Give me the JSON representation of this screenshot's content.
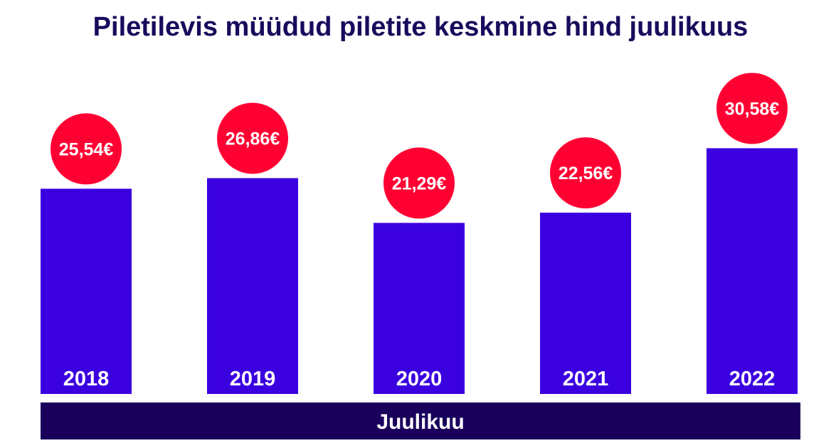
{
  "chart_data": {
    "type": "bar",
    "title": "Piletilevis müüdud piletite keskmine hind juulikuus",
    "xlabel": "Juulikuu",
    "categories": [
      "2018",
      "2019",
      "2020",
      "2021",
      "2022"
    ],
    "values": [
      25.54,
      26.86,
      21.29,
      22.56,
      30.58
    ],
    "value_labels": [
      "25,54€",
      "26,86€",
      "21,29€",
      "22,56€",
      "30,58€"
    ],
    "colors": {
      "bar": "#3b00e0",
      "bubble": "#ff0033",
      "title": "#1a0a5c",
      "axis_band": "#1a005c"
    },
    "grid": false,
    "legend": "none"
  }
}
